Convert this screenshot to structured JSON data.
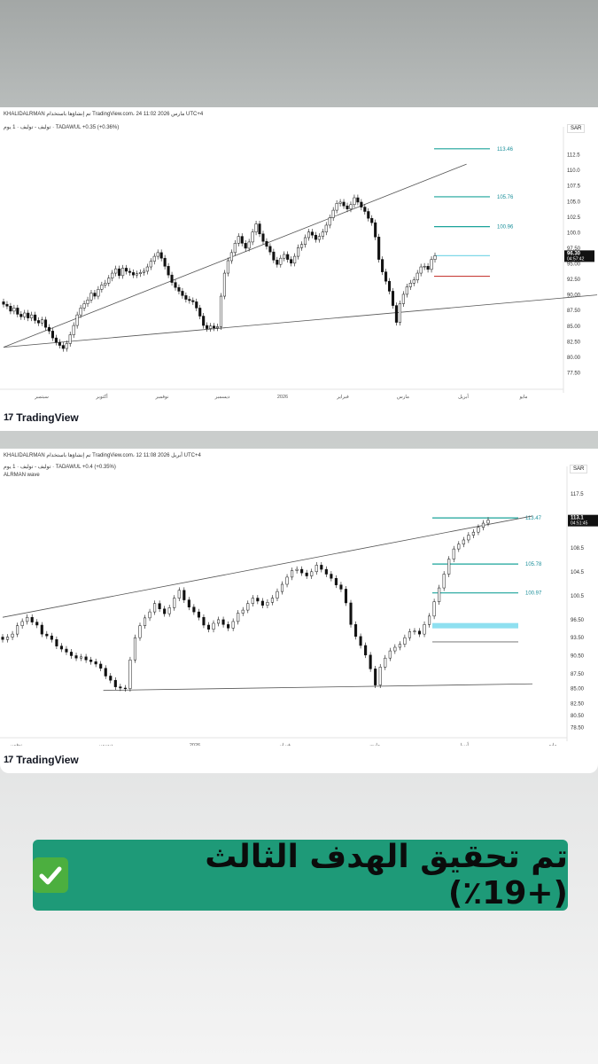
{
  "chart_data": [
    {
      "type": "line",
      "title": "KHALIDALRMAN تم إنشاؤها باستخدام TradingView.com، 24 مارس 2026 11:02 UTC+4",
      "symbol_line": "توليف - توليف · 1 يوم · TADAWUL  +0.35 (+0.36%)",
      "currency": "SAR",
      "x_ticks": [
        "سبتمبر",
        "أكتوبر",
        "نوفمبر",
        "ديسمبر",
        "2026",
        "فبراير",
        "مارس",
        "أبريل",
        "مايو"
      ],
      "y_ticks": [
        "112.5",
        "110.0",
        "107.5",
        "105.0",
        "102.5",
        "100.0",
        "97.50",
        "95.00",
        "92.50",
        "90.00",
        "87.50",
        "85.00",
        "82.50",
        "80.00",
        "77.50"
      ],
      "ylim": [
        76,
        115
      ],
      "series": [
        {
          "values": [
            88.5,
            88.2,
            87.4,
            87.9,
            86.9,
            86.5,
            87.1,
            86.3,
            86.8,
            85.9,
            85.5,
            86.0,
            84.8,
            84.2,
            83.1,
            82.4,
            81.9,
            81.4,
            82.2,
            83.6,
            85.1,
            86.8,
            87.9,
            88.6,
            89.2,
            90.3,
            89.8,
            90.9,
            91.6,
            91.9,
            92.7,
            93.5,
            94.2,
            93.1,
            94.3,
            93.8,
            93.6,
            93.2,
            93.4,
            93.6,
            93.8,
            94.5,
            95.4,
            96.2,
            96.8,
            95.9,
            94.6,
            93.2,
            92.0,
            91.2,
            90.6,
            89.9,
            89.3,
            89.1,
            88.9,
            87.9,
            86.6,
            85.1,
            84.6,
            85.0,
            84.7,
            84.9,
            89.8,
            93.5,
            95.5,
            96.8,
            98.3,
            99.4,
            98.3,
            97.5,
            98.5,
            100.1,
            101.4,
            99.8,
            98.6,
            97.8,
            96.9,
            95.6,
            94.9,
            95.9,
            96.5,
            95.7,
            95.1,
            96.2,
            97.6,
            98.1,
            99.2,
            100.1,
            99.6,
            98.9,
            99.4,
            100.1,
            101.2,
            102.4,
            103.6,
            104.7,
            104.9,
            104.3,
            103.8,
            104.5,
            105.6,
            104.9,
            104.1,
            103.4,
            102.3,
            101.6,
            99.3,
            95.7,
            93.7,
            92.2,
            90.6,
            88.3,
            85.6,
            88.6,
            90.1,
            91.3,
            91.9,
            92.4,
            93.5,
            94.5,
            94.6,
            94.1,
            95.7,
            96.3
          ]
        },
        {
          "name": "target",
          "values": []
        }
      ],
      "levels": [
        {
          "label": "113.46",
          "value": 113.46,
          "color": "#1aa39a"
        },
        {
          "label": "105.76",
          "value": 105.76,
          "color": "#1aa39a"
        },
        {
          "label": "100.96",
          "value": 100.96,
          "color": "#1aa39a"
        },
        {
          "label": "",
          "value": 96.3,
          "color": "#7fd8e8"
        },
        {
          "label": "",
          "value": 93.0,
          "color": "#c9403b"
        }
      ],
      "price_tag": {
        "price": "96.30",
        "time": "04:57:42"
      },
      "trendlines": [
        [
          0.0,
          81.6,
          0.78,
          111.0
        ],
        [
          0.0,
          81.6,
          1.0,
          90.0
        ]
      ]
    },
    {
      "type": "line",
      "title": "KHALIDALRMAN تم إنشاؤها باستخدام TradingView.com، 12 أبريل 2026 11:08 UTC+4",
      "symbol_line": "توليف - توليف · 1 يوم · TADAWUL  +0.4 (+0.35%)",
      "indicator": "ALRMAN wave",
      "currency": "SAR",
      "x_ticks": [
        "نوفمبر",
        "ديسمبر",
        "2026",
        "فبراير",
        "مارس",
        "أبريل",
        "مايو"
      ],
      "y_ticks": [
        "117.5",
        "113.1",
        "108.5",
        "104.5",
        "100.5",
        "96.50",
        "93.50",
        "90.50",
        "87.50",
        "85.00",
        "82.50",
        "80.50",
        "78.50"
      ],
      "ylim": [
        78,
        120
      ],
      "series": [
        {
          "values": [
            93.2,
            93.6,
            94.1,
            95.5,
            96.2,
            96.9,
            96.1,
            95.6,
            94.1,
            93.8,
            93.2,
            92.1,
            91.6,
            91.1,
            90.5,
            90.1,
            90.3,
            89.8,
            89.5,
            89.1,
            88.4,
            87.1,
            86.4,
            85.3,
            85.1,
            85.0,
            89.8,
            93.5,
            95.5,
            96.8,
            97.8,
            99.2,
            98.3,
            97.5,
            98.5,
            100.1,
            101.4,
            99.8,
            98.6,
            97.8,
            96.9,
            95.6,
            94.9,
            95.9,
            96.5,
            95.7,
            95.1,
            96.2,
            97.6,
            98.1,
            99.2,
            100.1,
            99.6,
            98.9,
            99.4,
            100.1,
            101.2,
            102.4,
            103.6,
            104.7,
            104.9,
            104.3,
            103.8,
            104.5,
            105.6,
            104.9,
            104.1,
            103.4,
            102.3,
            101.6,
            99.3,
            95.7,
            93.7,
            92.2,
            90.6,
            88.3,
            85.6,
            88.6,
            90.1,
            91.3,
            91.9,
            92.4,
            93.5,
            94.5,
            94.6,
            94.1,
            95.7,
            97.1,
            99.5,
            101.8,
            104.1,
            106.6,
            108.3,
            109.1,
            109.8,
            110.6,
            111.1,
            111.9,
            112.6,
            113.1
          ]
        }
      ],
      "levels": [
        {
          "label": "113.47",
          "value": 113.47,
          "color": "#1aa39a"
        },
        {
          "label": "105.78",
          "value": 105.78,
          "color": "#1aa39a"
        },
        {
          "label": "100.97",
          "value": 100.97,
          "color": "#1aa39a"
        },
        {
          "label": "",
          "value": 95.5,
          "color": "#8fe0f0"
        },
        {
          "label": "",
          "value": 92.8,
          "color": "#888888"
        }
      ],
      "price_tag": {
        "price": "113.1",
        "time": "04:51:45"
      },
      "trendlines": [
        [
          0.0,
          96.9,
          1.0,
          113.8
        ],
        [
          0.19,
          84.7,
          1.0,
          85.8
        ]
      ]
    }
  ],
  "brand": {
    "name": "TradingView",
    "logo": "17"
  },
  "banner": {
    "text": "تم تحقيق الهدف الثالث (+19٪)",
    "icon": "check-mark-icon"
  }
}
